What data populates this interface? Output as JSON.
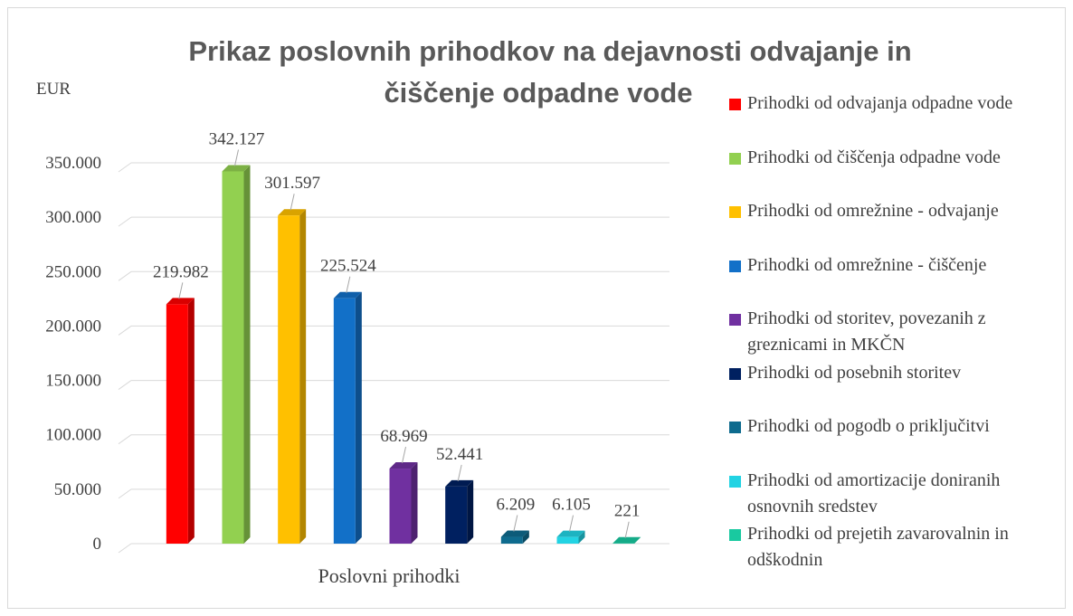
{
  "chart_data": {
    "type": "bar",
    "title": [
      "Prikaz poslovnih prihodkov na dejavnosti odvajanje in",
      "čiščenje odpadne vode"
    ],
    "y_label": "EUR",
    "x_label": "Poslovni prihodki",
    "categories": [
      "Poslovni prihodki"
    ],
    "ylim": [
      0,
      350000
    ],
    "yticks": [
      0,
      {
        "value": 50000,
        "label": "50.000"
      },
      {
        "value": 100000,
        "label": "100.000"
      },
      {
        "value": 150000,
        "label": "150.000"
      },
      {
        "value": 200000,
        "label": "200.000"
      },
      {
        "value": 250000,
        "label": "250.000"
      },
      {
        "value": 300000,
        "label": "300.000"
      },
      {
        "value": 350000,
        "label": "350.000"
      }
    ],
    "grid": true,
    "legend": "right",
    "series": [
      {
        "name": "Prihodki od odvajanja odpadne vode",
        "color": "#ff0000",
        "values": [
          219982
        ],
        "value_labels": [
          "219.982"
        ]
      },
      {
        "name": "Prihodki od čiščenja odpadne vode",
        "color": "#92d050",
        "values": [
          342127
        ],
        "value_labels": [
          "342.127"
        ]
      },
      {
        "name": "Prihodki od omrežnine - odvajanje",
        "color": "#ffc000",
        "values": [
          301597
        ],
        "value_labels": [
          "301.597"
        ]
      },
      {
        "name": "Prihodki od omrežnine - čiščenje",
        "color": "#1270c8",
        "values": [
          225524
        ],
        "value_labels": [
          "225.524"
        ]
      },
      {
        "name": "Prihodki od storitev, povezanih z greznicami in MKČN",
        "color": "#7030a0",
        "values": [
          68969
        ],
        "value_labels": [
          "68.969"
        ]
      },
      {
        "name": "Prihodki od posebnih storitev",
        "color": "#002060",
        "values": [
          52441
        ],
        "value_labels": [
          "52.441"
        ]
      },
      {
        "name": "Prihodki od pogodb o priključitvi",
        "color": "#0e6b8e",
        "values": [
          6209
        ],
        "value_labels": [
          "6.209"
        ]
      },
      {
        "name": "Prihodki od amortizacije doniranih osnovnih sredstev",
        "color": "#22d3e3",
        "values": [
          6105
        ],
        "value_labels": [
          "6.105"
        ]
      },
      {
        "name": "Prihodki od prejetih zavarovalnin in odškodnin",
        "color": "#19c9a0",
        "values": [
          221
        ],
        "value_labels": [
          "221"
        ]
      }
    ]
  }
}
